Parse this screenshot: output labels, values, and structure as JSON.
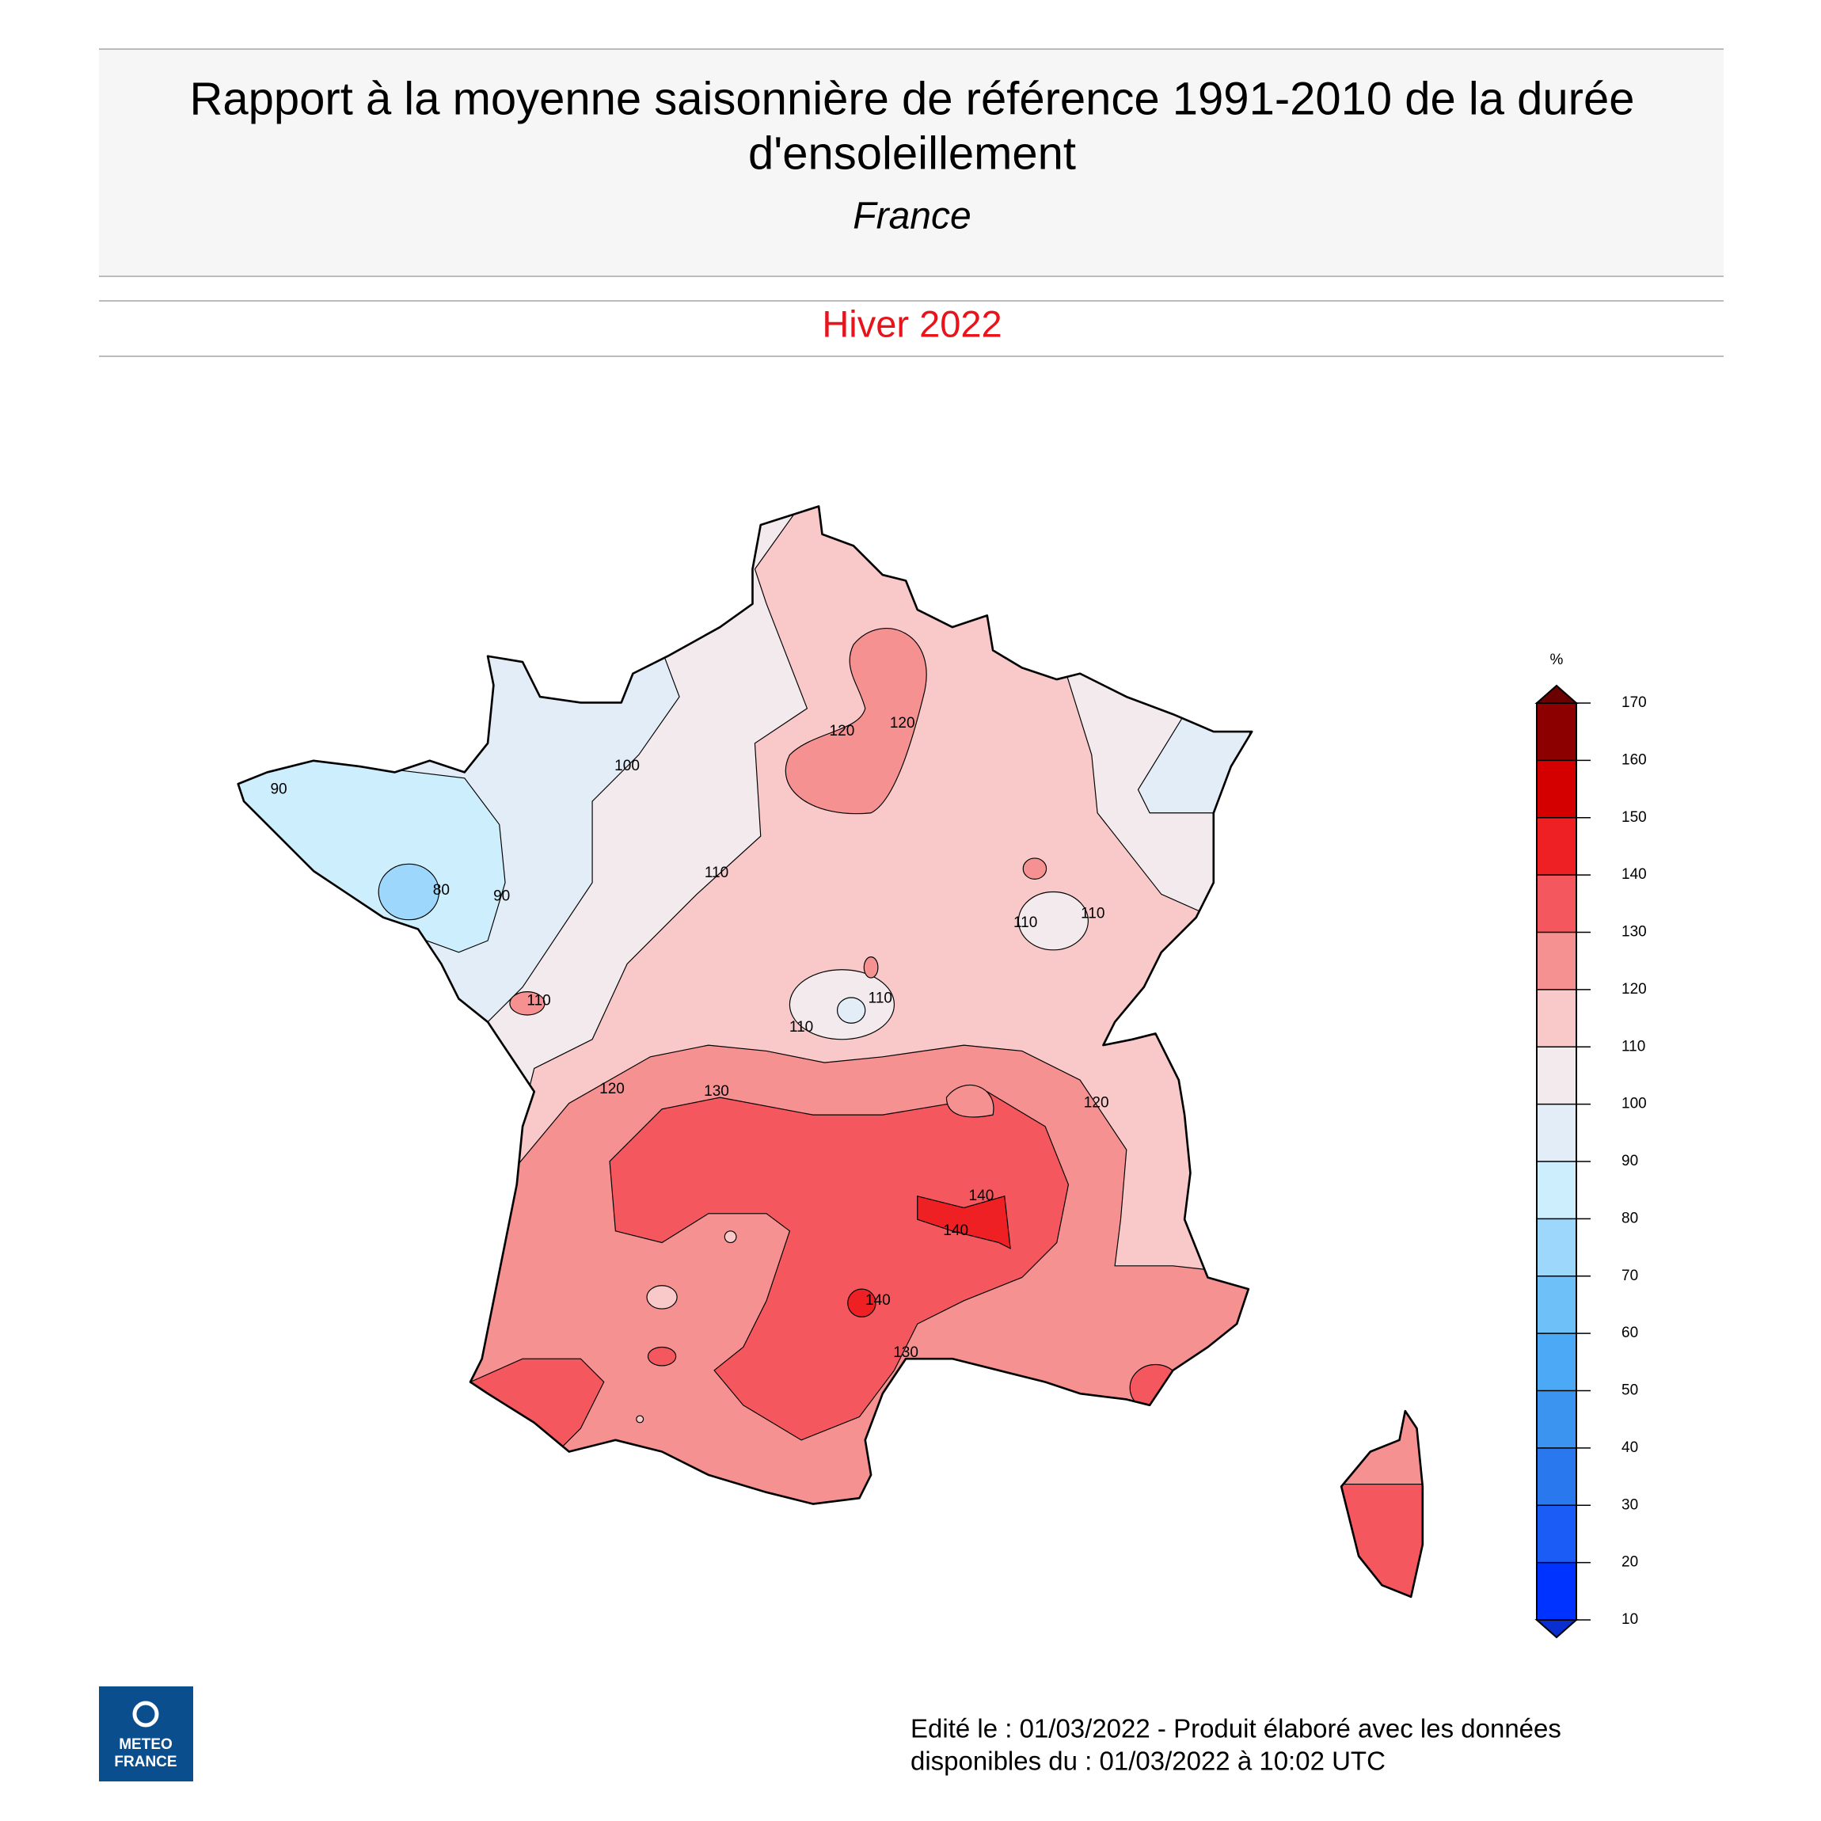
{
  "header": {
    "title": [
      "Rapport à la moyenne saisonnière de référence 1991-2010 de la durée",
      "d'ensoleillement"
    ],
    "subtitle": "France",
    "period": "Hiver 2022"
  },
  "map": {
    "contour_labels": [
      100,
      90,
      80,
      90,
      110,
      120,
      120,
      110,
      110,
      110,
      110,
      110,
      120,
      130,
      120,
      140,
      140,
      140,
      130
    ]
  },
  "legend": {
    "unit": "%",
    "ticks": [
      10,
      20,
      30,
      40,
      50,
      60,
      70,
      80,
      90,
      100,
      110,
      120,
      130,
      140,
      150,
      160,
      170
    ],
    "colors": [
      "#0033ff",
      "#1a5cf5",
      "#2a78ee",
      "#3b95f0",
      "#4ba9f5",
      "#6dc0f8",
      "#9dd7fb",
      "#cdeefc",
      "#e2edf7",
      "#f3eaee",
      "#f9c9c9",
      "#f69192",
      "#f4585e",
      "#ee2024",
      "#d40000",
      "#8c0000"
    ],
    "under_color": "#0a2fd0",
    "over_color": "#6b0000"
  },
  "logo": {
    "line1": "METEO",
    "line2": "FRANCE"
  },
  "footer": [
    "Edité le : 01/03/2022 - Produit élaboré avec les données",
    "disponibles du : 01/03/2022 à 10:02 UTC"
  ]
}
